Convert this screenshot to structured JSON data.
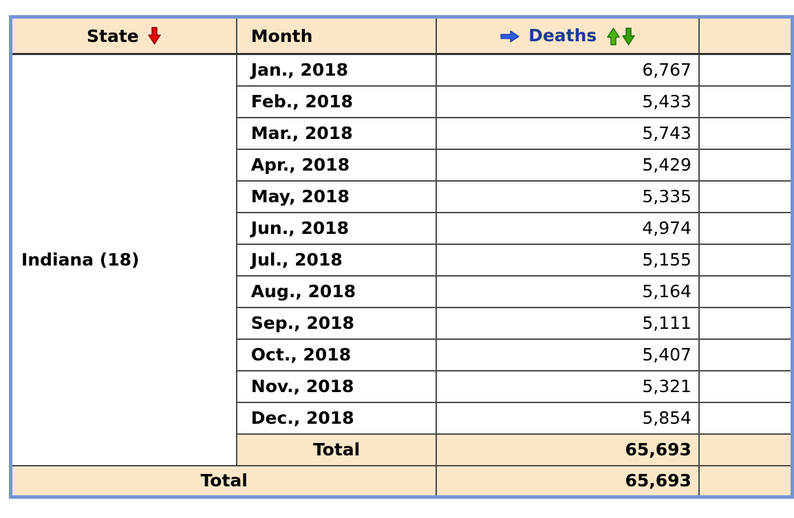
{
  "colors": {
    "outer_border_blue": "#7296d6",
    "header_bg_peach": "#fbe7c8",
    "grid_line": "#4a4a4a",
    "deaths_header_text": "#1a3c94",
    "sort_arrow_red": "#e60404",
    "sort_arrow_green_up": "#4db300",
    "sort_arrow_green_down": "#36a000",
    "pointer_arrow_blue": "#2d5be8"
  },
  "icons": {
    "state_sort": "red-down-block-arrow",
    "deaths_pointer": "blue-right-block-arrow",
    "deaths_sort_asc": "green-up-block-arrow",
    "deaths_sort_desc": "green-down-block-arrow"
  },
  "table": {
    "headers": {
      "state": "State",
      "month": "Month",
      "deaths": "Deaths"
    },
    "state_group": {
      "state": "Indiana (18)",
      "rows": [
        {
          "month": "Jan., 2018",
          "deaths": "6,767"
        },
        {
          "month": "Feb., 2018",
          "deaths": "5,433"
        },
        {
          "month": "Mar., 2018",
          "deaths": "5,743"
        },
        {
          "month": "Apr., 2018",
          "deaths": "5,429"
        },
        {
          "month": "May, 2018",
          "deaths": "5,335"
        },
        {
          "month": "Jun., 2018",
          "deaths": "4,974"
        },
        {
          "month": "Jul., 2018",
          "deaths": "5,155"
        },
        {
          "month": "Aug., 2018",
          "deaths": "5,164"
        },
        {
          "month": "Sep., 2018",
          "deaths": "5,111"
        },
        {
          "month": "Oct., 2018",
          "deaths": "5,407"
        },
        {
          "month": "Nov., 2018",
          "deaths": "5,321"
        },
        {
          "month": "Dec., 2018",
          "deaths": "5,854"
        }
      ],
      "subtotal_label": "Total",
      "subtotal_deaths": "65,693"
    },
    "grand_total": {
      "label": "Total",
      "deaths": "65,693"
    }
  }
}
